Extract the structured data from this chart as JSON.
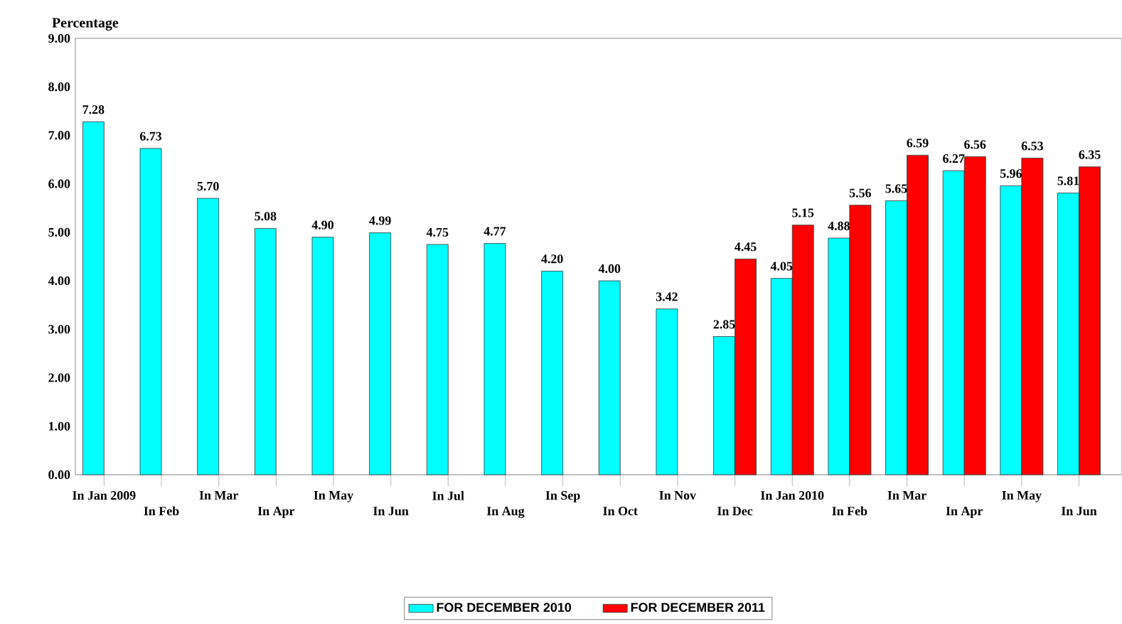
{
  "chart_data": {
    "type": "bar",
    "ylabel": "Percentage",
    "categories": [
      "In Jan 2009",
      "In Feb",
      "In Mar",
      "In Apr",
      "In May",
      "In Jun",
      "In Jul",
      "In Aug",
      "In Sep",
      "In Oct",
      "In Nov",
      "In Dec",
      "In Jan 2010",
      "In Feb",
      "In Mar",
      "In Apr",
      "In May",
      "In Jun"
    ],
    "series": [
      {
        "name": "FOR DECEMBER 2010",
        "color": "#00ffff",
        "values": [
          7.28,
          6.73,
          5.7,
          5.08,
          4.9,
          4.99,
          4.75,
          4.77,
          4.2,
          4.0,
          3.42,
          2.85,
          4.05,
          4.88,
          5.65,
          6.27,
          5.96,
          5.81
        ],
        "value_labels": [
          "7.28",
          "6.73",
          "5.70",
          "5.08",
          "4.90",
          "4.99",
          "4.75",
          "4.77",
          "4.20",
          "4.00",
          "3.42",
          "2.85",
          "4.05",
          "4.88",
          "5.65",
          "6.27",
          "5.96",
          "5.81"
        ]
      },
      {
        "name": "FOR DECEMBER 2011",
        "color": "#ff0000",
        "values": [
          null,
          null,
          null,
          null,
          null,
          null,
          null,
          null,
          null,
          null,
          null,
          4.45,
          5.15,
          5.56,
          6.59,
          6.56,
          6.53,
          6.35
        ],
        "value_labels": [
          null,
          null,
          null,
          null,
          null,
          null,
          null,
          null,
          null,
          null,
          null,
          "4.45",
          "5.15",
          "5.56",
          "6.59",
          "6.56",
          "6.53",
          "6.35"
        ]
      }
    ],
    "ylim": [
      0,
      9
    ],
    "yticks": [
      {
        "value": 0,
        "label": "0.00"
      },
      {
        "value": 1,
        "label": "1.00"
      },
      {
        "value": 2,
        "label": "2.00"
      },
      {
        "value": 3,
        "label": "3.00"
      },
      {
        "value": 4,
        "label": "4.00"
      },
      {
        "value": 5,
        "label": "5.00"
      },
      {
        "value": 6,
        "label": "6.00"
      },
      {
        "value": 7,
        "label": "7.00"
      },
      {
        "value": 8,
        "label": "8.00"
      },
      {
        "value": 9,
        "label": "9.00"
      }
    ],
    "grid": false,
    "legend": "bottom"
  }
}
